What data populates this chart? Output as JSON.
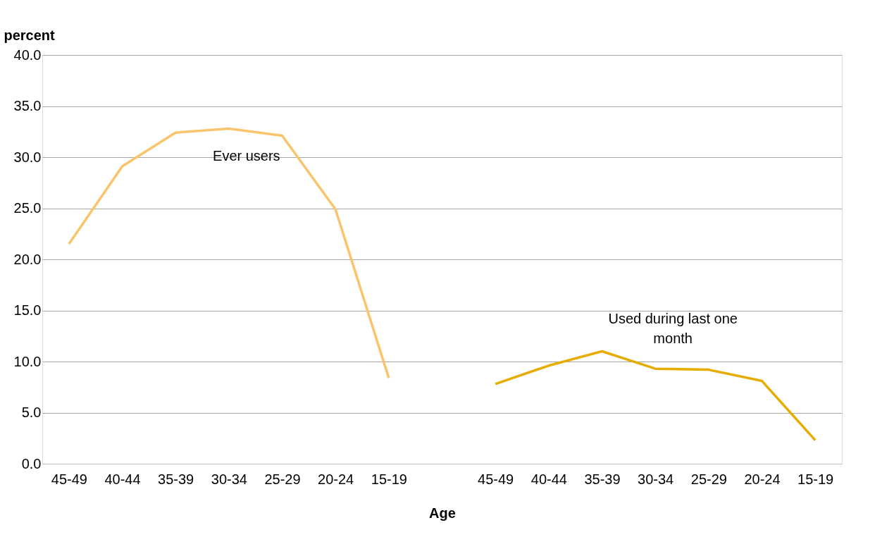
{
  "chart_data": {
    "type": "line",
    "xlabel": "Age",
    "ylabel": "percent",
    "categories": [
      "45-49",
      "40-44",
      "35-39",
      "30-34",
      "25-29",
      "20-24",
      "15-19",
      null,
      "45-49",
      "40-44",
      "35-39",
      "30-34",
      "25-29",
      "20-24",
      "15-19"
    ],
    "series": [
      {
        "name": "Ever users",
        "color": "#f9c46b",
        "values": [
          21.5,
          29.1,
          32.4,
          32.8,
          32.1,
          24.9,
          8.4,
          null,
          null,
          null,
          null,
          null,
          null,
          null,
          null
        ]
      },
      {
        "name": "Used during last one month",
        "color": "#e6ad00",
        "values": [
          null,
          null,
          null,
          null,
          null,
          null,
          null,
          null,
          7.8,
          9.6,
          11.0,
          9.3,
          9.2,
          8.1,
          2.3
        ]
      }
    ],
    "ylim": [
      0,
      40
    ],
    "yticks": [
      {
        "value": 0,
        "label": "0.0"
      },
      {
        "value": 5,
        "label": "5.0"
      },
      {
        "value": 10,
        "label": "10.0"
      },
      {
        "value": 15,
        "label": "15.0"
      },
      {
        "value": 20,
        "label": "20.0"
      },
      {
        "value": 25,
        "label": "25.0"
      },
      {
        "value": 30,
        "label": "30.0"
      },
      {
        "value": 35,
        "label": "35.0"
      },
      {
        "value": 40,
        "label": "40.0"
      }
    ],
    "grid": "y",
    "legend": false,
    "marker": "none",
    "line_style": "solid"
  }
}
